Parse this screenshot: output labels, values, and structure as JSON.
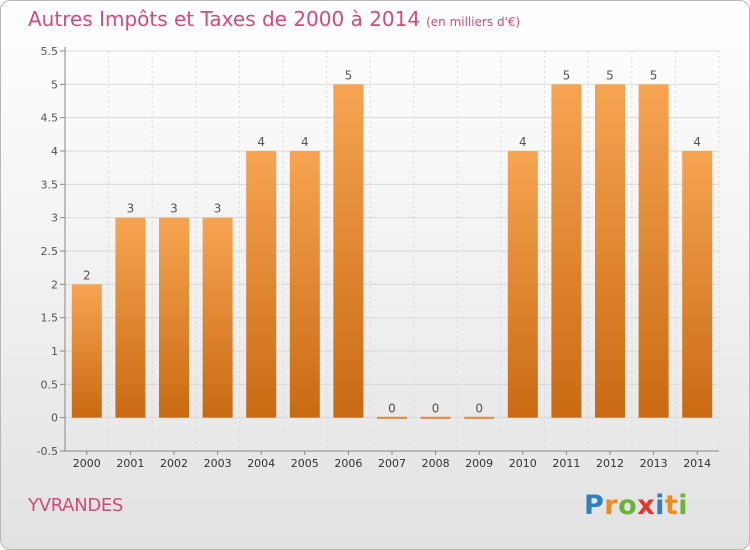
{
  "title": "Autres Impôts et Taxes de 2000 à 2014",
  "unit": "(en milliers d'€)",
  "commune": "YVRANDES",
  "logo": {
    "letters": [
      "P",
      "r",
      "o",
      "x",
      "i",
      "t",
      "i"
    ],
    "colors": [
      "#2f7fc1",
      "#f08a1c",
      "#6bb33a",
      "#e8352e",
      "#2f7fc1",
      "#f08a1c",
      "#6bb33a"
    ]
  },
  "chart_data": {
    "type": "bar",
    "categories": [
      "2000",
      "2001",
      "2002",
      "2003",
      "2004",
      "2005",
      "2006",
      "2007",
      "2008",
      "2009",
      "2010",
      "2011",
      "2012",
      "2013",
      "2014"
    ],
    "values": [
      2,
      3,
      3,
      3,
      4,
      4,
      5,
      0,
      0,
      0,
      4,
      5,
      5,
      5,
      4
    ],
    "data_labels": [
      "2",
      "3",
      "3",
      "3",
      "4",
      "4",
      "5",
      "0",
      "0",
      "0",
      "4",
      "5",
      "5",
      "5",
      "4"
    ],
    "ylim": [
      -0.5,
      5.5
    ],
    "yticks": [
      "-0.5",
      "0",
      "0.5",
      "1",
      "1.5",
      "2",
      "2.5",
      "3",
      "3.5",
      "4",
      "4.5",
      "5",
      "5.5"
    ],
    "ytick_values": [
      -0.5,
      0,
      0.5,
      1,
      1.5,
      2,
      2.5,
      3,
      3.5,
      4,
      4.5,
      5,
      5.5
    ],
    "grid": true,
    "colors": {
      "bar_light": "#f7a452",
      "bar_dark": "#c96a12",
      "label": "#555555",
      "grid": "#d9d9d9",
      "axis": "#888888"
    }
  }
}
